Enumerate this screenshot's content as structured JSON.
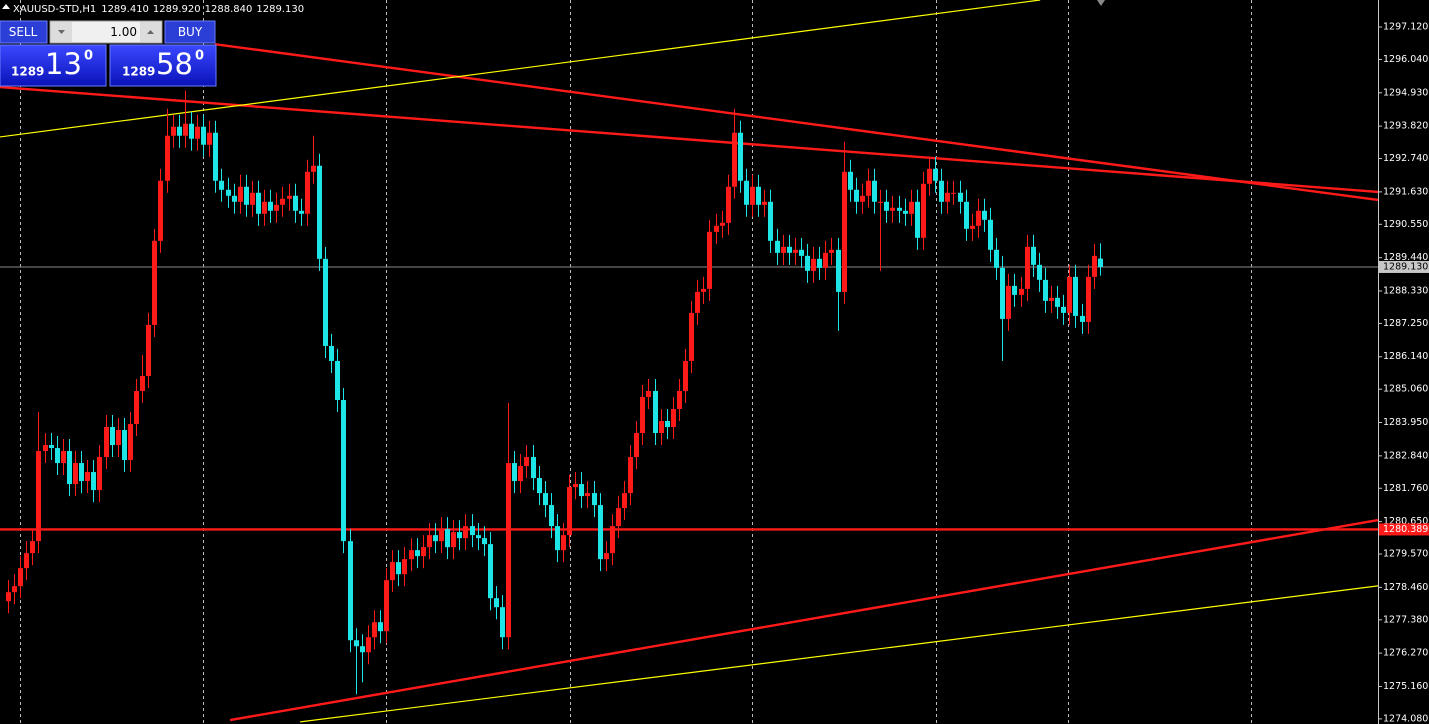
{
  "chart_data": {
    "type": "candlestick",
    "symbol": "XAUUSD-STD,H1",
    "header_values": [
      "1289.410",
      "1289.920",
      "1288.840",
      "1289.130"
    ],
    "up_color": "#ff1a1a",
    "down_color": "#1ee6e6",
    "open": [
      1278.0,
      1278.3,
      1278.5,
      1279.1,
      1279.6,
      1280.0,
      1283.0,
      1283.2,
      1283.1,
      1282.6,
      1283.0,
      1281.9,
      1282.6,
      1282.0,
      1282.3,
      1281.7,
      1282.8,
      1283.8,
      1283.2,
      1283.7,
      1282.7,
      1283.9,
      1285.0,
      1285.5,
      1287.2,
      1290.0,
      1292.0,
      1293.5,
      1293.8,
      1293.5,
      1293.9,
      1293.4,
      1293.8,
      1293.2,
      1293.6,
      1292.0,
      1291.7,
      1291.5,
      1291.3,
      1291.8,
      1291.2,
      1291.6,
      1290.9,
      1291.3,
      1291.0,
      1291.2,
      1291.4,
      1291.5,
      1291.0,
      1290.9,
      1292.3,
      1292.5,
      1289.4,
      1286.5,
      1286.0,
      1284.7,
      1280.0,
      1276.7,
      1276.5,
      1276.3,
      1276.8,
      1277.3,
      1277.0,
      1278.7,
      1279.3,
      1278.9,
      1279.4,
      1279.7,
      1279.5,
      1279.8,
      1280.2,
      1280.0,
      1280.4,
      1279.8,
      1280.3,
      1280.1,
      1280.5,
      1280.2,
      1280.1,
      1279.9,
      1278.1,
      1277.8,
      1276.8,
      1282.6,
      1282.0,
      1282.5,
      1282.8,
      1282.1,
      1281.6,
      1281.2,
      1280.5,
      1279.7,
      1280.2,
      1281.8,
      1281.9,
      1281.5,
      1281.6,
      1281.2,
      1279.4,
      1279.6,
      1280.5,
      1281.1,
      1281.6,
      1282.8,
      1283.6,
      1284.8,
      1285.0,
      1283.6,
      1284.0,
      1283.8,
      1284.4,
      1285.0,
      1286.0,
      1287.6,
      1288.3,
      1288.4,
      1290.3,
      1290.5,
      1290.6,
      1291.8,
      1293.6,
      1292.0,
      1291.2,
      1291.8,
      1291.2,
      1291.3,
      1290.0,
      1289.6,
      1289.8,
      1289.6,
      1289.7,
      1289.5,
      1289.0,
      1289.4,
      1289.1,
      1289.6,
      1289.7,
      1288.3,
      1292.3,
      1291.7,
      1291.3,
      1291.5,
      1292.0,
      1291.3,
      1291.3,
      1291.0,
      1291.1,
      1291.0,
      1290.9,
      1291.3,
      1290.1,
      1291.9,
      1292.4,
      1292.0,
      1291.3,
      1291.6,
      1291.6,
      1291.3,
      1290.4,
      1290.5,
      1291.0,
      1290.7,
      1289.7,
      1289.1,
      1287.4,
      1288.5,
      1288.2,
      1288.4,
      1289.8,
      1289.2,
      1288.7,
      1288.0,
      1288.1,
      1287.8,
      1287.6,
      1288.8,
      1287.5,
      1287.3,
      1288.8,
      1289.41
    ],
    "high": [
      1278.7,
      1278.9,
      1279.5,
      1280.0,
      1280.4,
      1284.3,
      1283.6,
      1283.6,
      1283.5,
      1283.4,
      1283.4,
      1283.0,
      1283.0,
      1282.7,
      1282.7,
      1283.2,
      1284.2,
      1284.2,
      1284.1,
      1284.1,
      1284.3,
      1285.4,
      1286.2,
      1287.6,
      1290.4,
      1292.4,
      1294.4,
      1294.2,
      1294.2,
      1295.0,
      1294.3,
      1294.2,
      1294.2,
      1294.0,
      1294.0,
      1292.4,
      1292.1,
      1291.9,
      1292.2,
      1292.2,
      1292.0,
      1292.0,
      1291.7,
      1291.7,
      1291.6,
      1291.8,
      1291.9,
      1291.9,
      1291.4,
      1292.7,
      1293.5,
      1292.9,
      1289.8,
      1286.9,
      1286.4,
      1285.1,
      1280.4,
      1277.1,
      1276.9,
      1277.2,
      1277.7,
      1277.7,
      1279.1,
      1279.7,
      1279.7,
      1279.8,
      1280.1,
      1280.1,
      1280.2,
      1280.6,
      1280.6,
      1280.8,
      1280.8,
      1280.7,
      1280.7,
      1280.9,
      1280.9,
      1280.6,
      1280.5,
      1280.3,
      1278.5,
      1278.2,
      1284.6,
      1283.0,
      1282.9,
      1283.2,
      1283.2,
      1282.5,
      1282.0,
      1281.6,
      1280.9,
      1280.6,
      1282.2,
      1282.3,
      1282.3,
      1282.0,
      1282.0,
      1281.6,
      1280.0,
      1280.9,
      1281.5,
      1282.0,
      1283.2,
      1284.0,
      1285.2,
      1285.4,
      1285.4,
      1284.4,
      1284.4,
      1284.8,
      1285.4,
      1286.4,
      1288.0,
      1288.7,
      1288.8,
      1290.7,
      1290.9,
      1291.0,
      1292.2,
      1294.4,
      1294.0,
      1292.4,
      1292.2,
      1292.2,
      1291.7,
      1291.7,
      1290.4,
      1290.2,
      1290.2,
      1290.1,
      1290.1,
      1289.9,
      1289.8,
      1289.8,
      1290.0,
      1290.1,
      1290.1,
      1293.3,
      1292.7,
      1292.1,
      1291.9,
      1292.4,
      1292.4,
      1291.7,
      1291.7,
      1291.5,
      1291.5,
      1291.4,
      1291.7,
      1291.7,
      1292.3,
      1292.8,
      1292.8,
      1292.4,
      1292.0,
      1292.0,
      1292.0,
      1291.7,
      1290.9,
      1291.4,
      1291.4,
      1291.1,
      1290.1,
      1289.5,
      1288.9,
      1288.9,
      1288.8,
      1290.2,
      1290.2,
      1289.6,
      1289.1,
      1288.5,
      1288.5,
      1288.2,
      1289.2,
      1289.2,
      1287.9,
      1289.2,
      1289.9,
      1289.92
    ],
    "low": [
      1277.6,
      1277.9,
      1278.1,
      1278.7,
      1279.2,
      1279.6,
      1282.6,
      1282.7,
      1282.2,
      1282.2,
      1281.5,
      1281.5,
      1281.6,
      1281.6,
      1281.3,
      1281.3,
      1282.4,
      1282.8,
      1282.8,
      1282.3,
      1282.3,
      1283.5,
      1284.6,
      1285.1,
      1286.8,
      1289.6,
      1291.6,
      1293.1,
      1293.1,
      1293.1,
      1293.0,
      1293.0,
      1292.8,
      1292.8,
      1291.6,
      1291.3,
      1291.1,
      1290.9,
      1290.9,
      1290.8,
      1290.8,
      1290.5,
      1290.5,
      1290.6,
      1290.6,
      1290.8,
      1291.0,
      1290.6,
      1290.5,
      1290.5,
      1291.9,
      1289.0,
      1286.1,
      1285.6,
      1284.3,
      1279.6,
      1276.3,
      1274.9,
      1275.3,
      1275.9,
      1276.4,
      1276.6,
      1276.6,
      1278.3,
      1278.5,
      1278.5,
      1279.0,
      1279.1,
      1279.1,
      1279.4,
      1279.6,
      1279.6,
      1279.4,
      1279.4,
      1279.7,
      1279.7,
      1279.8,
      1279.7,
      1279.5,
      1277.7,
      1277.4,
      1276.4,
      1276.4,
      1281.6,
      1281.6,
      1282.1,
      1281.7,
      1281.2,
      1280.8,
      1280.1,
      1279.3,
      1279.3,
      1279.8,
      1281.4,
      1281.1,
      1281.1,
      1280.8,
      1279.0,
      1279.0,
      1279.2,
      1280.1,
      1280.7,
      1281.2,
      1282.4,
      1283.2,
      1284.4,
      1283.2,
      1283.2,
      1283.4,
      1283.4,
      1284.0,
      1284.6,
      1285.6,
      1287.2,
      1287.9,
      1288.0,
      1289.9,
      1290.1,
      1290.2,
      1291.4,
      1291.6,
      1290.8,
      1290.8,
      1290.8,
      1290.8,
      1289.6,
      1289.2,
      1289.2,
      1289.2,
      1289.2,
      1289.1,
      1288.6,
      1288.6,
      1288.7,
      1288.7,
      1289.2,
      1287.0,
      1287.9,
      1291.3,
      1290.9,
      1290.9,
      1291.1,
      1290.9,
      1289.0,
      1290.6,
      1290.6,
      1290.6,
      1290.5,
      1290.5,
      1289.7,
      1289.7,
      1291.5,
      1291.6,
      1290.9,
      1290.9,
      1291.2,
      1290.9,
      1290.0,
      1290.0,
      1290.1,
      1290.3,
      1289.3,
      1288.7,
      1286.0,
      1287.0,
      1287.8,
      1287.8,
      1288.0,
      1288.8,
      1288.3,
      1287.6,
      1287.6,
      1287.4,
      1287.2,
      1287.2,
      1287.1,
      1286.9,
      1286.9,
      1288.4,
      1288.84
    ],
    "close": [
      1278.3,
      1278.5,
      1279.1,
      1279.6,
      1280.0,
      1283.0,
      1283.2,
      1283.1,
      1282.6,
      1283.0,
      1281.9,
      1282.6,
      1282.0,
      1282.3,
      1281.7,
      1282.8,
      1283.8,
      1283.2,
      1283.7,
      1282.7,
      1283.9,
      1285.0,
      1285.5,
      1287.2,
      1290.0,
      1292.0,
      1293.5,
      1293.8,
      1293.5,
      1293.9,
      1293.4,
      1293.8,
      1293.2,
      1293.6,
      1292.0,
      1291.7,
      1291.5,
      1291.3,
      1291.8,
      1291.2,
      1291.6,
      1290.9,
      1291.3,
      1291.0,
      1291.2,
      1291.4,
      1291.5,
      1291.0,
      1290.9,
      1292.3,
      1292.5,
      1289.4,
      1286.5,
      1286.0,
      1284.7,
      1280.0,
      1276.7,
      1276.5,
      1276.3,
      1276.8,
      1277.3,
      1277.0,
      1278.7,
      1279.3,
      1278.9,
      1279.4,
      1279.7,
      1279.5,
      1279.8,
      1280.2,
      1280.0,
      1280.4,
      1279.8,
      1280.3,
      1280.1,
      1280.5,
      1280.2,
      1280.1,
      1279.9,
      1278.1,
      1277.8,
      1276.8,
      1282.6,
      1282.0,
      1282.5,
      1282.8,
      1282.1,
      1281.6,
      1281.2,
      1280.5,
      1279.7,
      1280.2,
      1281.8,
      1281.9,
      1281.5,
      1281.6,
      1281.2,
      1279.4,
      1279.6,
      1280.5,
      1281.1,
      1281.6,
      1282.8,
      1283.6,
      1284.8,
      1285.0,
      1283.6,
      1284.0,
      1283.8,
      1284.4,
      1285.0,
      1286.0,
      1287.6,
      1288.3,
      1288.4,
      1290.3,
      1290.5,
      1290.6,
      1291.8,
      1293.6,
      1292.0,
      1291.2,
      1291.8,
      1291.2,
      1291.3,
      1290.0,
      1289.6,
      1289.8,
      1289.6,
      1289.7,
      1289.5,
      1289.0,
      1289.4,
      1289.1,
      1289.6,
      1289.7,
      1288.3,
      1292.3,
      1291.7,
      1291.3,
      1291.5,
      1292.0,
      1291.3,
      1291.3,
      1291.0,
      1291.1,
      1291.0,
      1290.9,
      1291.3,
      1290.1,
      1291.9,
      1292.4,
      1292.0,
      1291.3,
      1291.6,
      1291.6,
      1291.3,
      1290.4,
      1290.5,
      1291.0,
      1290.7,
      1289.7,
      1289.1,
      1287.4,
      1288.5,
      1288.2,
      1288.4,
      1289.8,
      1289.2,
      1288.7,
      1288.0,
      1288.1,
      1287.8,
      1287.6,
      1288.8,
      1287.5,
      1287.3,
      1288.8,
      1289.5,
      1289.13
    ],
    "xlim": [
      -1.31,
      224.59
    ],
    "ylim": [
      1273.91,
      1298.02
    ],
    "yticks": [
      {
        "value": 1297.12,
        "label": "1297.120"
      },
      {
        "value": 1296.04,
        "label": "1296.040"
      },
      {
        "value": 1294.93,
        "label": "1294.930"
      },
      {
        "value": 1293.82,
        "label": "1293.820"
      },
      {
        "value": 1292.74,
        "label": "1292.740"
      },
      {
        "value": 1291.63,
        "label": "1291.630"
      },
      {
        "value": 1290.55,
        "label": "1290.550"
      },
      {
        "value": 1289.44,
        "label": "1289.440"
      },
      {
        "value": 1288.33,
        "label": "1288.330"
      },
      {
        "value": 1287.25,
        "label": "1287.250"
      },
      {
        "value": 1286.14,
        "label": "1286.140"
      },
      {
        "value": 1285.06,
        "label": "1285.060"
      },
      {
        "value": 1283.95,
        "label": "1283.950"
      },
      {
        "value": 1282.84,
        "label": "1282.840"
      },
      {
        "value": 1281.76,
        "label": "1281.760"
      },
      {
        "value": 1280.65,
        "label": "1280.650"
      },
      {
        "value": 1279.57,
        "label": "1279.570"
      },
      {
        "value": 1278.46,
        "label": "1278.460"
      },
      {
        "value": 1277.38,
        "label": "1277.380"
      },
      {
        "value": 1276.27,
        "label": "1276.270"
      },
      {
        "value": 1275.16,
        "label": "1275.160"
      },
      {
        "value": 1274.08,
        "label": "1274.080"
      }
    ],
    "last_price": {
      "value": 1289.13,
      "label": "1289.130"
    },
    "hline": {
      "value": 1280.389,
      "color": "#ff1a1a"
    },
    "trendlines": [
      {
        "color": "#ff1a1a",
        "x": [
          -1.31,
          224.59
        ],
        "y": [
          1295.12,
          1291.63
        ]
      },
      {
        "color": "#ff1a1a",
        "x": [
          33.9,
          224.59
        ],
        "y": [
          1296.55,
          1291.36
        ]
      },
      {
        "color": "#ff1a1a",
        "x": [
          36.4,
          224.59
        ],
        "y": [
          1274.04,
          1280.7
        ]
      },
      {
        "color": "#ffff00",
        "x": [
          -1.31,
          169.2
        ],
        "y": [
          1293.46,
          1298.02
        ]
      },
      {
        "color": "#ffff00",
        "x": [
          47.9,
          224.59
        ],
        "y": [
          1273.98,
          1278.51
        ]
      }
    ],
    "grid": true
  },
  "trade_panel": {
    "sell": "SELL",
    "lot": "1.00",
    "buy": "BUY",
    "bid": {
      "prefix": "1289",
      "big": "13",
      "sup": "0"
    },
    "ask": {
      "prefix": "1289",
      "big": "58",
      "sup": "0"
    }
  }
}
